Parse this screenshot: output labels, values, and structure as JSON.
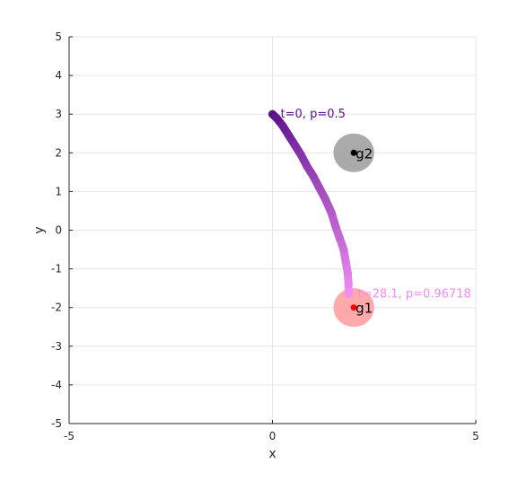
{
  "chart_data": {
    "type": "scatter",
    "title": "",
    "xlabel": "x",
    "ylabel": "y",
    "xlim": [
      -5,
      5
    ],
    "ylim": [
      -5,
      5
    ],
    "x_ticks": [
      -5,
      0,
      5
    ],
    "y_ticks": [
      -5,
      -4,
      -3,
      -2,
      -1,
      0,
      1,
      2,
      3,
      4,
      5
    ],
    "grid": true,
    "trajectory": {
      "points": [
        {
          "x": 0.0,
          "y": 3.0,
          "p": 0.5
        },
        {
          "x": 0.1,
          "y": 2.9,
          "p": 0.51
        },
        {
          "x": 0.25,
          "y": 2.7,
          "p": 0.53
        },
        {
          "x": 0.4,
          "y": 2.45,
          "p": 0.56
        },
        {
          "x": 0.55,
          "y": 2.2,
          "p": 0.6
        },
        {
          "x": 0.7,
          "y": 1.95,
          "p": 0.64
        },
        {
          "x": 0.85,
          "y": 1.65,
          "p": 0.68
        },
        {
          "x": 1.0,
          "y": 1.4,
          "p": 0.71
        },
        {
          "x": 1.15,
          "y": 1.1,
          "p": 0.74
        },
        {
          "x": 1.3,
          "y": 0.8,
          "p": 0.78
        },
        {
          "x": 1.45,
          "y": 0.45,
          "p": 0.81
        },
        {
          "x": 1.55,
          "y": 0.1,
          "p": 0.84
        },
        {
          "x": 1.65,
          "y": -0.2,
          "p": 0.87
        },
        {
          "x": 1.75,
          "y": -0.5,
          "p": 0.89
        },
        {
          "x": 1.8,
          "y": -0.8,
          "p": 0.91
        },
        {
          "x": 1.85,
          "y": -1.1,
          "p": 0.93
        },
        {
          "x": 1.87,
          "y": -1.4,
          "p": 0.95
        },
        {
          "x": 1.87,
          "y": -1.65,
          "p": 0.967
        }
      ],
      "color_start": "#5b0f8a",
      "color_end": "#f08cf2"
    },
    "goals": [
      {
        "name": "g1",
        "x": 2.0,
        "y": -2.0,
        "radius": 0.5,
        "fill": "#ffaaaa",
        "dot": "#ff0000",
        "label_color": "#000000"
      },
      {
        "name": "g2",
        "x": 2.0,
        "y": 2.0,
        "radius": 0.5,
        "fill": "#aaaaaa",
        "dot": "#000000",
        "label_color": "#000000"
      }
    ],
    "annotations": [
      {
        "text": "t=0, p=0.5",
        "x": 0.2,
        "y": 3.0,
        "color": "#5b0f8a"
      },
      {
        "text": "t=28.1, p=0.96718",
        "x": 2.1,
        "y": -1.65,
        "color": "#f08cf2"
      }
    ]
  }
}
